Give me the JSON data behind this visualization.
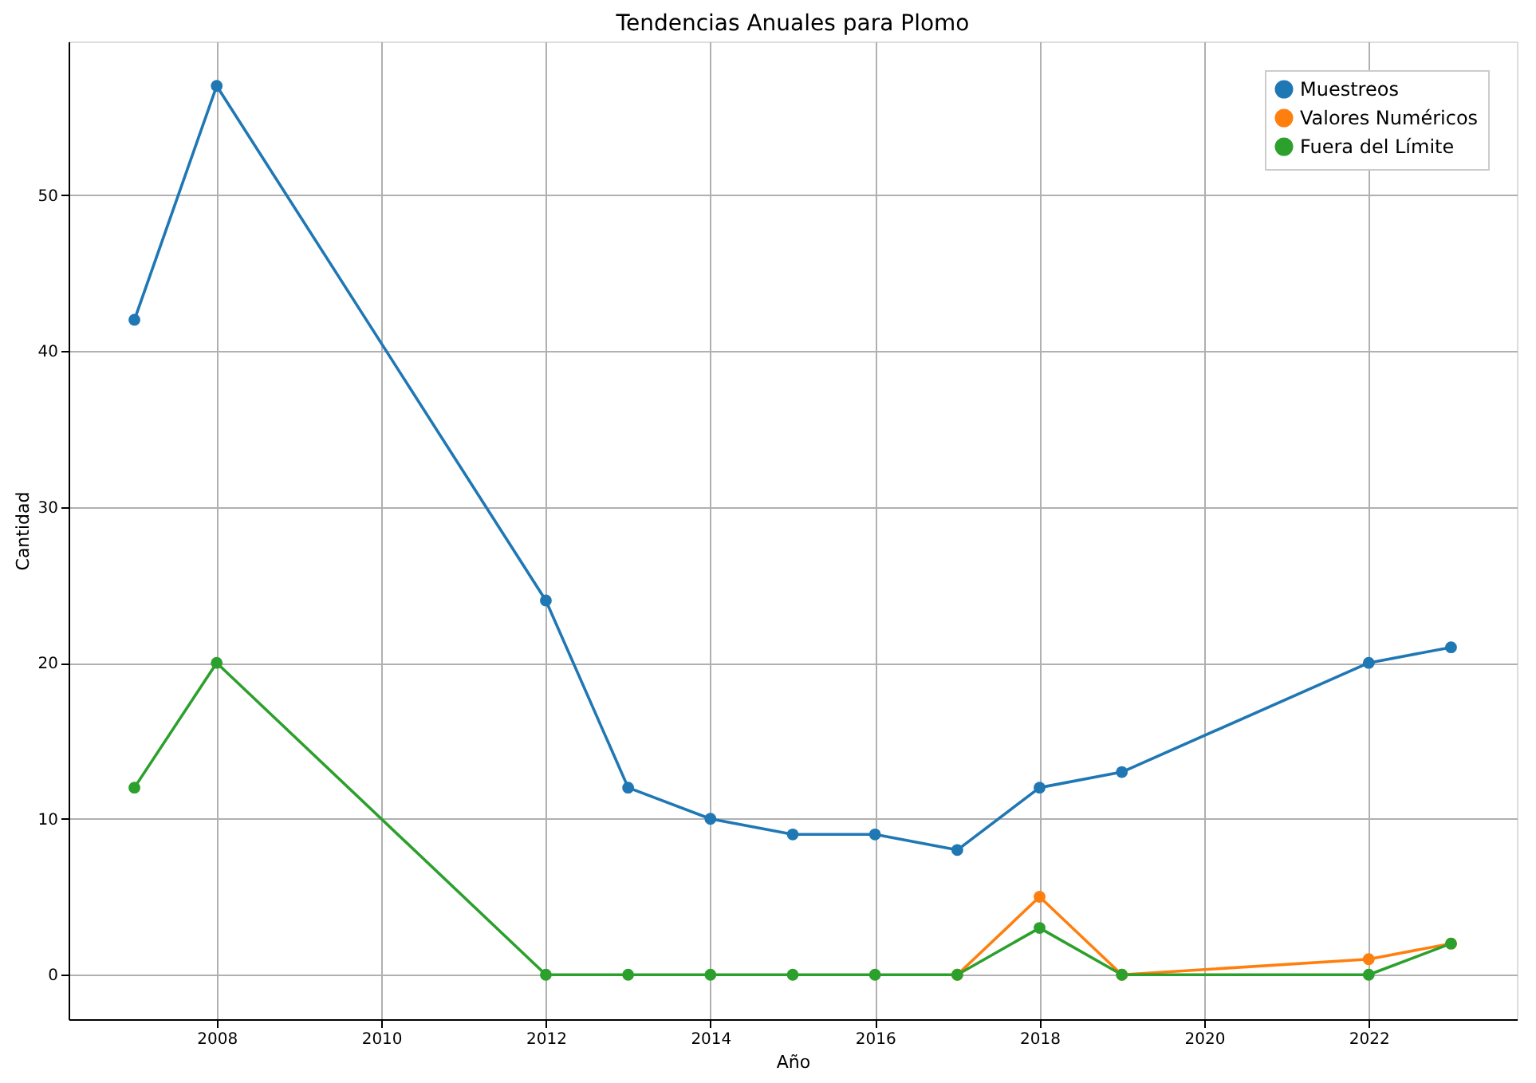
{
  "chart_data": {
    "type": "line",
    "title": "Tendencias Anuales para Plomo",
    "xlabel": "Año",
    "ylabel": "Cantidad",
    "x": [
      2007,
      2008,
      2012,
      2013,
      2014,
      2015,
      2016,
      2017,
      2018,
      2019,
      2022,
      2023
    ],
    "series": [
      {
        "name": "Muestreos",
        "color": "#1f77b4",
        "values": [
          42,
          57,
          24,
          12,
          10,
          9,
          9,
          8,
          12,
          13,
          20,
          21
        ]
      },
      {
        "name": "Valores Numéricos",
        "color": "#ff7f0e",
        "values": [
          null,
          null,
          null,
          null,
          null,
          null,
          null,
          0,
          5,
          0,
          1,
          2
        ]
      },
      {
        "name": "Fuera del Límite",
        "color": "#2ca02c",
        "values": [
          12,
          20,
          0,
          0,
          0,
          0,
          0,
          0,
          3,
          0,
          0,
          2
        ]
      }
    ],
    "xlim": [
      2006.2,
      2023.8
    ],
    "ylim": [
      -2.85,
      59.85
    ],
    "xticks": [
      2008,
      2010,
      2012,
      2014,
      2016,
      2018,
      2020,
      2022
    ],
    "yticks": [
      0,
      10,
      20,
      30,
      40,
      50
    ],
    "grid": true,
    "legend": "top right",
    "marker": "circle",
    "line_style": "solid"
  }
}
